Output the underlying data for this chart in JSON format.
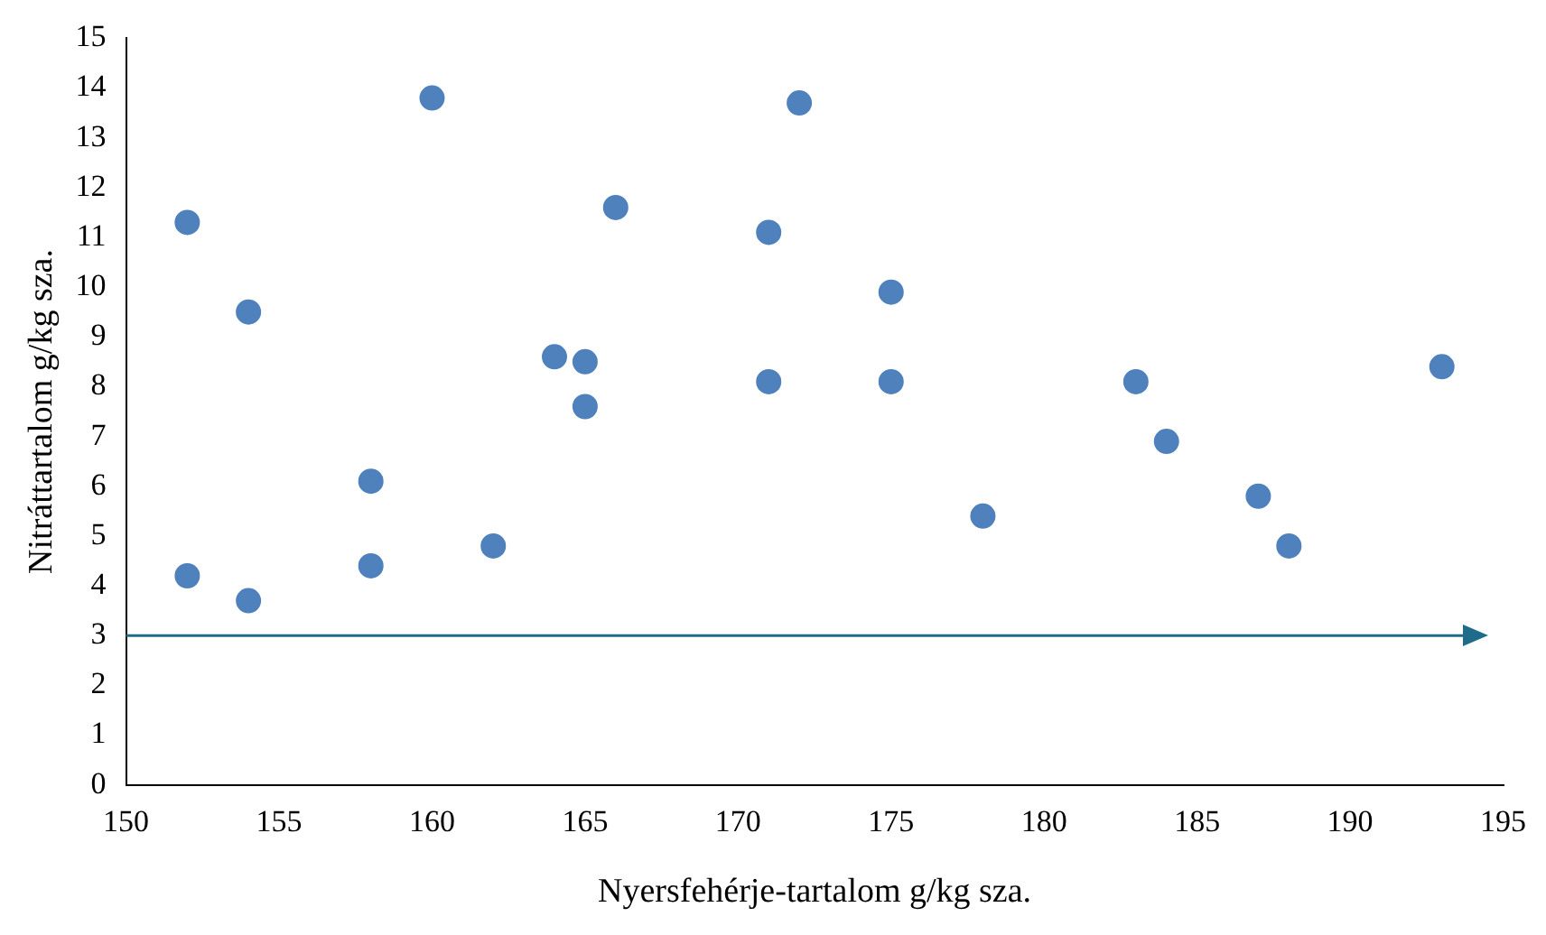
{
  "chart_data": {
    "type": "scatter",
    "xlabel": "Nyersfehérje-tartalom g/kg sza.",
    "ylabel": "Nitráttartalom g/kg sza.",
    "x": [
      152,
      152,
      154,
      154,
      158,
      158,
      160,
      162,
      164,
      165,
      165,
      166,
      171,
      171,
      172,
      175,
      175,
      178,
      183,
      184,
      187,
      188,
      193
    ],
    "series": [
      {
        "color": "#4f81bd",
        "values": [
          4.2,
          11.3,
          9.5,
          3.7,
          6.1,
          4.4,
          13.8,
          4.8,
          8.6,
          8.5,
          7.6,
          11.6,
          11.1,
          8.1,
          13.7,
          9.9,
          8.1,
          5.4,
          8.1,
          6.9,
          5.8,
          4.8,
          8.4
        ]
      }
    ],
    "xlim": [
      150,
      195
    ],
    "xticks": [
      150,
      155,
      160,
      165,
      170,
      175,
      180,
      185,
      190,
      195
    ],
    "ylim": [
      0,
      15
    ],
    "yticks": [
      0,
      1,
      2,
      3,
      4,
      5,
      6,
      7,
      8,
      9,
      10,
      11,
      12,
      13,
      14,
      15
    ],
    "ref_lines": [
      {
        "axis": "y",
        "value": 3,
        "color": "#1f6b8a"
      }
    ],
    "grid": false,
    "legend": false,
    "marker": "circle"
  }
}
